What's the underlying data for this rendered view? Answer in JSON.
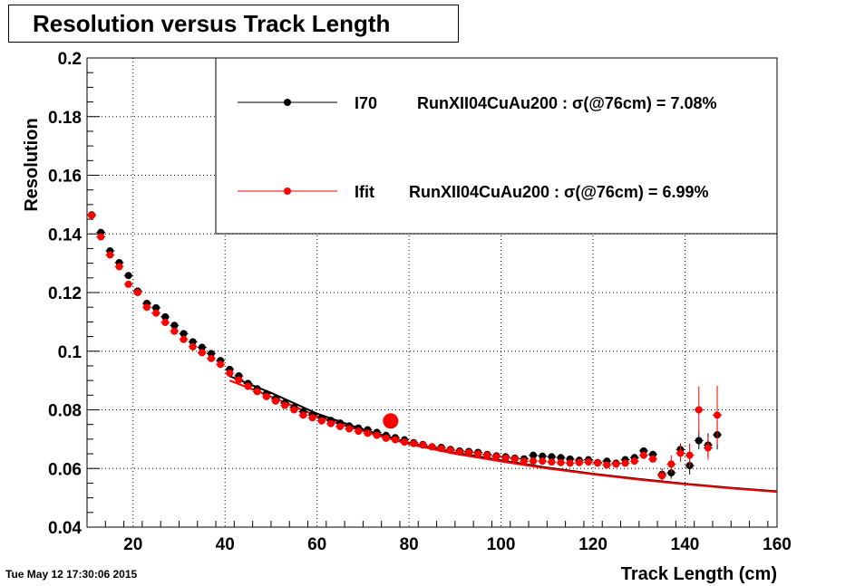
{
  "title": "Resolution versus Track Length",
  "timestamp": "Tue May 12 17:30:06 2015",
  "chart_data": {
    "type": "scatter",
    "title": "Resolution versus Track Length",
    "xlabel": "Track Length (cm)",
    "ylabel": "Resolution",
    "xlim": [
      10,
      160
    ],
    "ylim": [
      0.04,
      0.2
    ],
    "xticks": [
      20,
      40,
      60,
      80,
      100,
      120,
      140,
      160
    ],
    "yticks": [
      0.04,
      0.06,
      0.08,
      0.1,
      0.12,
      0.14,
      0.16,
      0.18,
      0.2
    ],
    "xtick_labels": [
      "20",
      "40",
      "60",
      "80",
      "100",
      "120",
      "140",
      "160"
    ],
    "ytick_labels": [
      "0.04",
      "0.06",
      "0.08",
      "0.1",
      "0.12",
      "0.14",
      "0.16",
      "0.18",
      "0.2"
    ],
    "grid": true,
    "legend_position": "top-right",
    "series": [
      {
        "name": "I70",
        "legend_text": "RunXII04CuAu200 : σ(@76cm) =  7.08%",
        "color": "#000000",
        "x": [
          11,
          13,
          15,
          17,
          19,
          21,
          23,
          25,
          27,
          29,
          31,
          33,
          35,
          37,
          39,
          41,
          43,
          45,
          47,
          49,
          51,
          53,
          55,
          57,
          59,
          61,
          63,
          65,
          67,
          69,
          71,
          73,
          75,
          77,
          79,
          81,
          83,
          85,
          87,
          89,
          91,
          93,
          95,
          97,
          99,
          101,
          103,
          105,
          107,
          109,
          111,
          113,
          115,
          117,
          119,
          121,
          123,
          125,
          127,
          129,
          131,
          133,
          135,
          137,
          139,
          141,
          143,
          145,
          147
        ],
        "y": [
          0.1465,
          0.1405,
          0.1342,
          0.1302,
          0.1258,
          0.1205,
          0.1163,
          0.1148,
          0.1117,
          0.1088,
          0.106,
          0.1032,
          0.1013,
          0.0992,
          0.0968,
          0.0938,
          0.0916,
          0.089,
          0.0872,
          0.0855,
          0.0838,
          0.0823,
          0.0808,
          0.0794,
          0.0783,
          0.0772,
          0.0764,
          0.0755,
          0.0745,
          0.0738,
          0.0732,
          0.0723,
          0.0713,
          0.0705,
          0.0698,
          0.0688,
          0.0682,
          0.0674,
          0.0672,
          0.0665,
          0.066,
          0.0658,
          0.0655,
          0.0648,
          0.0643,
          0.064,
          0.0635,
          0.0633,
          0.0645,
          0.0642,
          0.064,
          0.0637,
          0.0632,
          0.0628,
          0.063,
          0.062,
          0.0625,
          0.0618,
          0.063,
          0.0637,
          0.066,
          0.0648,
          0.058,
          0.0585,
          0.0665,
          0.061,
          0.0695,
          0.068,
          0.0715
        ],
        "yerr": [
          0,
          0,
          0,
          0,
          0,
          0,
          0,
          0,
          0,
          0,
          0,
          0,
          0,
          0,
          0,
          0,
          0,
          0,
          0,
          0,
          0,
          0,
          0,
          0,
          0,
          0,
          0,
          0,
          0,
          0,
          0,
          0,
          0,
          0,
          0,
          0,
          0,
          0,
          0,
          0,
          0,
          0,
          0,
          0,
          0,
          0,
          0,
          0,
          0,
          0,
          0,
          0,
          0,
          0,
          0,
          0,
          0,
          0,
          0,
          0,
          0.001,
          0.001,
          0.002,
          0.002,
          0.002,
          0.003,
          0.003,
          0.004,
          0.005
        ],
        "fit_x": [
          41,
          50,
          60,
          70,
          80,
          90,
          100,
          110,
          120,
          130,
          140,
          150,
          160
        ],
        "fit_y": [
          0.0915,
          0.0858,
          0.0787,
          0.0733,
          0.0688,
          0.0654,
          0.0628,
          0.0603,
          0.0582,
          0.0564,
          0.0548,
          0.0534,
          0.0522
        ]
      },
      {
        "name": "Ifit",
        "legend_text": "RunXII04CuAu200 : σ(@76cm) =  6.99%",
        "color": "#ff0000",
        "x": [
          11,
          13,
          15,
          17,
          19,
          21,
          23,
          25,
          27,
          29,
          31,
          33,
          35,
          37,
          39,
          41,
          43,
          45,
          47,
          49,
          51,
          53,
          55,
          57,
          59,
          61,
          63,
          65,
          67,
          69,
          71,
          73,
          75,
          77,
          79,
          81,
          83,
          85,
          87,
          89,
          91,
          93,
          95,
          97,
          99,
          101,
          103,
          105,
          107,
          109,
          111,
          113,
          115,
          117,
          119,
          121,
          123,
          125,
          127,
          129,
          131,
          133,
          135,
          137,
          139,
          141,
          143,
          145,
          147
        ],
        "y": [
          0.1463,
          0.139,
          0.1328,
          0.1288,
          0.1228,
          0.12,
          0.115,
          0.113,
          0.1098,
          0.1068,
          0.104,
          0.1015,
          0.0995,
          0.0975,
          0.0955,
          0.0925,
          0.0902,
          0.088,
          0.0862,
          0.0845,
          0.083,
          0.0815,
          0.08,
          0.0782,
          0.0773,
          0.0762,
          0.0753,
          0.0743,
          0.0735,
          0.0727,
          0.072,
          0.0713,
          0.0703,
          0.0698,
          0.069,
          0.0685,
          0.068,
          0.0674,
          0.0668,
          0.0662,
          0.0656,
          0.0654,
          0.065,
          0.0645,
          0.064,
          0.0636,
          0.0632,
          0.0625,
          0.0625,
          0.0625,
          0.0622,
          0.062,
          0.0618,
          0.062,
          0.0622,
          0.0618,
          0.0612,
          0.0615,
          0.0618,
          0.0625,
          0.0645,
          0.0632,
          0.0575,
          0.0615,
          0.0652,
          0.0645,
          0.08,
          0.067,
          0.0782
        ],
        "yerr": [
          0,
          0,
          0,
          0,
          0,
          0,
          0,
          0,
          0,
          0,
          0,
          0,
          0,
          0,
          0,
          0,
          0,
          0,
          0,
          0,
          0,
          0,
          0,
          0,
          0,
          0,
          0,
          0,
          0,
          0,
          0,
          0,
          0,
          0,
          0,
          0,
          0,
          0,
          0,
          0,
          0,
          0,
          0,
          0,
          0,
          0,
          0,
          0,
          0,
          0,
          0,
          0,
          0,
          0,
          0,
          0,
          0,
          0,
          0,
          0,
          0.001,
          0.001,
          0.002,
          0.003,
          0.003,
          0.004,
          0.008,
          0.004,
          0.01
        ],
        "fit_x": [
          41,
          50,
          60,
          70,
          80,
          90,
          100,
          110,
          120,
          130,
          140,
          150,
          160
        ],
        "fit_y": [
          0.09,
          0.0845,
          0.0778,
          0.0727,
          0.0683,
          0.065,
          0.0624,
          0.06,
          0.058,
          0.0562,
          0.0546,
          0.0532,
          0.052
        ]
      }
    ],
    "markers": [
      {
        "x": 76,
        "y": 0.0762,
        "color": "#ff0000"
      }
    ]
  }
}
